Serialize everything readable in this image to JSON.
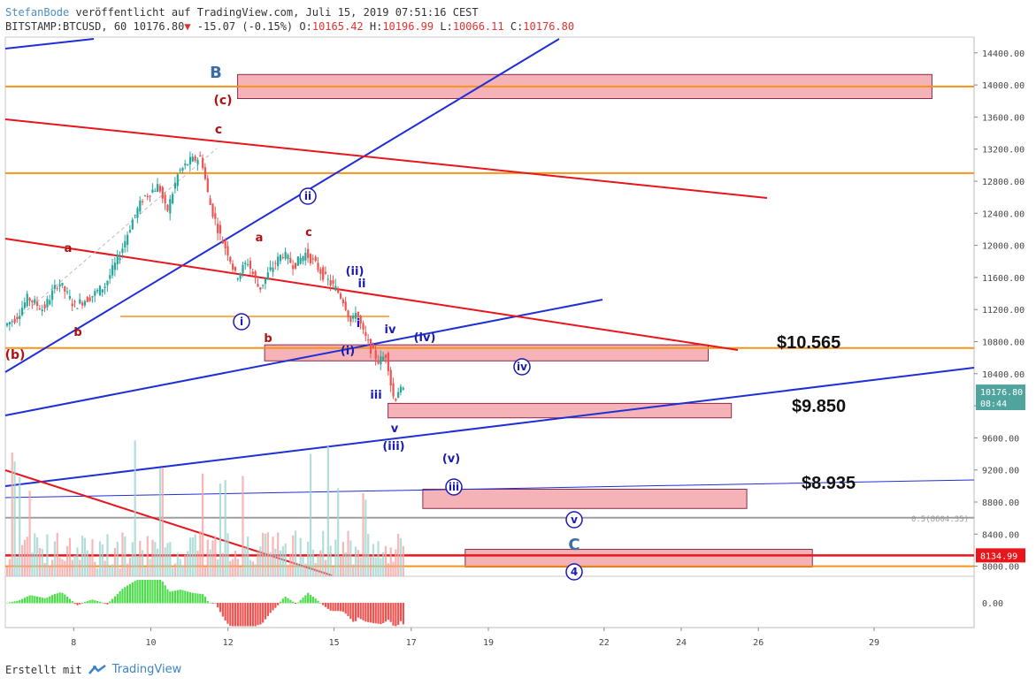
{
  "header": {
    "author": "StefanBode",
    "published": "veröffentlicht auf TradingView.com, Juli 15, 2019 07:51:16 CEST",
    "symbol": "BITSTAMP:BTCUSD, 60",
    "last": "10176.80",
    "change": "-15.07 (-0.15%)",
    "o_label": "O:",
    "o_val": "10165.42",
    "h_label": "H:",
    "h_val": "10196.99",
    "l_label": "L:",
    "l_val": "10066.11",
    "c_label": "C:",
    "c_val": "10176.80"
  },
  "footer": {
    "created_with": "Erstellt mit",
    "brand": "TradingView"
  },
  "colors": {
    "up": "#26a69a",
    "down": "#ef5350",
    "blue_line": "#1f2fd6",
    "red_line": "#e8161b",
    "orange": "#f7931a",
    "zone_fill": "#f4a0a5",
    "label_red": "#b01010",
    "label_blue": "#1a1ab4",
    "ma_blue": "#3d6fa6",
    "ma_yellow": "#e6d21a"
  },
  "chart_data": {
    "type": "candlestick",
    "y_axis": {
      "range": [
        7700,
        14500
      ],
      "ticks": [
        14400,
        14000,
        13600,
        13200,
        12800,
        12400,
        12000,
        11600,
        11200,
        10800,
        10400,
        10000,
        9600,
        9200,
        8800,
        8400,
        8000
      ],
      "tick_labels": [
        "14400.00",
        "14000.00",
        "13600.00",
        "13200.00",
        "12800.00",
        "12400.00",
        "12000.00",
        "11600.00",
        "11200.00",
        "10800.00",
        "10400.00",
        "10000.00",
        "9600.00",
        "9200.00",
        "8800.00",
        "8400.00",
        "8000.00"
      ],
      "price_tags": [
        {
          "label": "10176.80",
          "value": 10176.8,
          "color": "#4fa49e"
        },
        {
          "label": "08:44",
          "value": 10000,
          "color": "#4fa49e"
        },
        {
          "label": "8134.99",
          "value": 8134.99,
          "color": "#e8161b"
        }
      ]
    },
    "x_axis": {
      "range": [
        0,
        24
      ],
      "ticks": [
        {
          "label": "8",
          "day": 1.75
        },
        {
          "label": "10",
          "day": 3.75
        },
        {
          "label": "12",
          "day": 5.75
        },
        {
          "label": "15",
          "day": 8.5
        },
        {
          "label": "17",
          "day": 10.5
        },
        {
          "label": "19",
          "day": 12.5
        },
        {
          "label": "22",
          "day": 15.5
        },
        {
          "label": "24",
          "day": 17.5
        },
        {
          "label": "26",
          "day": 19.5
        },
        {
          "label": "29",
          "day": 22.5
        }
      ]
    },
    "ohlc_path": [
      [
        0,
        11000
      ],
      [
        0.3,
        11100
      ],
      [
        0.6,
        11350
      ],
      [
        1.0,
        11200
      ],
      [
        1.4,
        11550
      ],
      [
        1.8,
        11250
      ],
      [
        2.2,
        11350
      ],
      [
        2.6,
        11500
      ],
      [
        3.0,
        11900
      ],
      [
        3.3,
        12300
      ],
      [
        3.6,
        12600
      ],
      [
        4.0,
        12750
      ],
      [
        4.2,
        12400
      ],
      [
        4.5,
        12900
      ],
      [
        4.8,
        13050
      ],
      [
        5.1,
        13100
      ],
      [
        5.3,
        12550
      ],
      [
        5.6,
        12100
      ],
      [
        5.8,
        11900
      ],
      [
        6.0,
        11600
      ],
      [
        6.3,
        11800
      ],
      [
        6.6,
        11450
      ],
      [
        6.9,
        11700
      ],
      [
        7.2,
        11900
      ],
      [
        7.5,
        11750
      ],
      [
        7.8,
        11900
      ],
      [
        8.0,
        11800
      ],
      [
        8.3,
        11600
      ],
      [
        8.6,
        11450
      ],
      [
        8.8,
        11300
      ],
      [
        9.0,
        11000
      ],
      [
        9.1,
        11200
      ],
      [
        9.3,
        10900
      ],
      [
        9.5,
        10700
      ],
      [
        9.7,
        10550
      ],
      [
        9.9,
        10650
      ],
      [
        10.0,
        10300
      ],
      [
        10.1,
        10050
      ],
      [
        10.2,
        10200
      ],
      [
        10.3,
        10176.8
      ]
    ],
    "zones": [
      {
        "from": 6.0,
        "to": 24.0,
        "low": 13830,
        "high": 14130
      },
      {
        "from": 6.7,
        "to": 18.2,
        "low": 10560,
        "high": 10760
      },
      {
        "from": 9.9,
        "to": 18.8,
        "low": 9850,
        "high": 10030
      },
      {
        "from": 10.8,
        "to": 19.2,
        "low": 8720,
        "high": 8960
      },
      {
        "from": 11.9,
        "to": 20.9,
        "low": 7990,
        "high": 8210
      }
    ],
    "horizontal_levels": [
      {
        "value": 13980,
        "color": "orange"
      },
      {
        "value": 12900,
        "color": "orange"
      },
      {
        "value": 10720,
        "color": "orange"
      },
      {
        "value": 8000,
        "color": "orange"
      },
      {
        "value": 8134.99,
        "color": "red"
      },
      {
        "value": 8604.35,
        "color": "gray",
        "label": "0.5(8604.35)"
      }
    ],
    "price_callouts": [
      "$10.565",
      "$9.850",
      "$8.935"
    ],
    "wave_labels": [
      "B",
      "(c)",
      "c",
      "a",
      "b",
      "(b)",
      "a",
      "b",
      "c",
      "(ii)",
      "ii",
      "i",
      "iv",
      "(iv)",
      "(i)",
      "iii",
      "v",
      "(iii)",
      "(v)",
      "iv",
      "ii",
      "i",
      "iii",
      "v",
      "C",
      "4"
    ],
    "histogram_zero_label": "0.00"
  }
}
